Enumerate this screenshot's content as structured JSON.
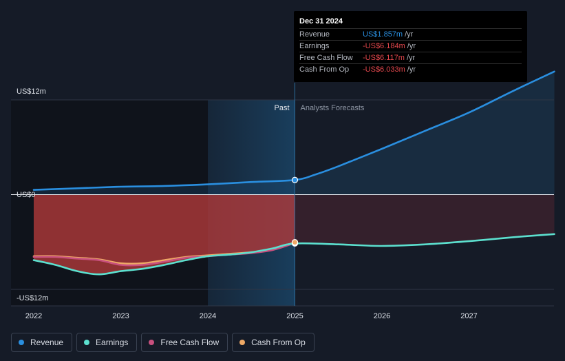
{
  "chart_data": {
    "type": "line",
    "currency_unit": "US$ millions per year",
    "y_ticks": [
      {
        "value": 12,
        "label": "US$12m"
      },
      {
        "value": 0,
        "label": "US$0"
      },
      {
        "value": -12,
        "label": "-US$12m"
      }
    ],
    "x_ticks": [
      {
        "value": 2022,
        "label": "2022"
      },
      {
        "value": 2023,
        "label": "2023"
      },
      {
        "value": 2024,
        "label": "2024"
      },
      {
        "value": 2025,
        "label": "2025"
      },
      {
        "value": 2026,
        "label": "2026"
      },
      {
        "value": 2027,
        "label": "2027"
      }
    ],
    "ylim": [
      -12,
      12
    ],
    "xlim": [
      2021.75,
      2027.98
    ],
    "past_label": "Past",
    "forecast_label": "Analysts Forecasts",
    "divider_x": 2025.0,
    "highlight_start_x": 2024.0,
    "series": [
      {
        "name": "Revenue",
        "color": "#2a8fe0",
        "points": [
          [
            2022.0,
            0.6
          ],
          [
            2022.5,
            0.8
          ],
          [
            2023.0,
            1.0
          ],
          [
            2023.5,
            1.1
          ],
          [
            2024.0,
            1.3
          ],
          [
            2024.5,
            1.6
          ],
          [
            2025.0,
            1.857
          ],
          [
            2025.25,
            2.6
          ],
          [
            2025.5,
            3.6
          ],
          [
            2026.0,
            5.8
          ],
          [
            2026.5,
            8.1
          ],
          [
            2027.0,
            10.4
          ],
          [
            2027.5,
            13.1
          ],
          [
            2027.98,
            15.6
          ]
        ]
      },
      {
        "name": "Earnings",
        "color": "#5ce0cf",
        "points": [
          [
            2022.0,
            -8.3
          ],
          [
            2022.25,
            -8.9
          ],
          [
            2022.5,
            -9.7
          ],
          [
            2022.75,
            -10.1
          ],
          [
            2023.0,
            -9.7
          ],
          [
            2023.25,
            -9.4
          ],
          [
            2023.5,
            -8.9
          ],
          [
            2023.75,
            -8.3
          ],
          [
            2024.0,
            -7.8
          ],
          [
            2024.25,
            -7.6
          ],
          [
            2024.5,
            -7.3
          ],
          [
            2024.75,
            -6.8
          ],
          [
            2025.0,
            -6.184
          ],
          [
            2025.5,
            -6.3
          ],
          [
            2026.0,
            -6.5
          ],
          [
            2026.5,
            -6.3
          ],
          [
            2027.0,
            -5.9
          ],
          [
            2027.5,
            -5.4
          ],
          [
            2027.98,
            -5.0
          ]
        ]
      },
      {
        "name": "Free Cash Flow",
        "color": "#c8507e",
        "points": [
          [
            2022.0,
            -7.9
          ],
          [
            2022.25,
            -7.9
          ],
          [
            2022.5,
            -8.1
          ],
          [
            2022.75,
            -8.3
          ],
          [
            2023.0,
            -8.9
          ],
          [
            2023.25,
            -8.9
          ],
          [
            2023.5,
            -8.5
          ],
          [
            2023.75,
            -8.0
          ],
          [
            2024.0,
            -7.8
          ],
          [
            2024.25,
            -7.6
          ],
          [
            2024.5,
            -7.4
          ],
          [
            2024.75,
            -7.0
          ],
          [
            2025.0,
            -6.117
          ]
        ]
      },
      {
        "name": "Cash From Op",
        "color": "#eea966",
        "points": [
          [
            2022.0,
            -7.8
          ],
          [
            2022.25,
            -7.8
          ],
          [
            2022.5,
            -8.0
          ],
          [
            2022.75,
            -8.2
          ],
          [
            2023.0,
            -8.7
          ],
          [
            2023.25,
            -8.7
          ],
          [
            2023.5,
            -8.3
          ],
          [
            2023.75,
            -7.9
          ],
          [
            2024.0,
            -7.7
          ],
          [
            2024.25,
            -7.5
          ],
          [
            2024.5,
            -7.3
          ],
          [
            2024.75,
            -6.9
          ],
          [
            2025.0,
            -6.033
          ]
        ]
      }
    ]
  },
  "tooltip": {
    "date": "Dec 31 2024",
    "rows": [
      {
        "label": "Revenue",
        "value": "US$1.857m",
        "unit": "/yr",
        "color": "#2a8fe0"
      },
      {
        "label": "Earnings",
        "value": "-US$6.184m",
        "unit": "/yr",
        "color": "#e5484d"
      },
      {
        "label": "Free Cash Flow",
        "value": "-US$6.117m",
        "unit": "/yr",
        "color": "#e5484d"
      },
      {
        "label": "Cash From Op",
        "value": "-US$6.033m",
        "unit": "/yr",
        "color": "#e5484d"
      }
    ]
  },
  "legend": [
    {
      "label": "Revenue",
      "color": "#2a8fe0"
    },
    {
      "label": "Earnings",
      "color": "#5ce0cf"
    },
    {
      "label": "Free Cash Flow",
      "color": "#c8507e"
    },
    {
      "label": "Cash From Op",
      "color": "#eea966"
    }
  ]
}
